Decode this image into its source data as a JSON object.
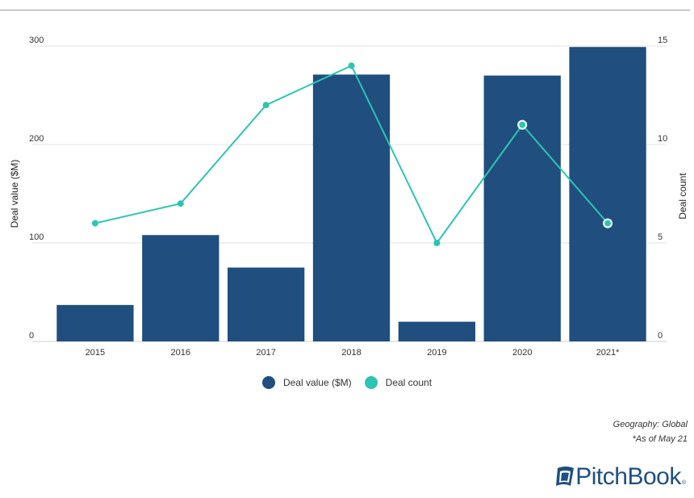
{
  "chart_data": {
    "type": "bar",
    "categories": [
      "2015",
      "2016",
      "2017",
      "2018",
      "2019",
      "2020",
      "2021*"
    ],
    "series": [
      {
        "name": "Deal value ($M)",
        "type": "bar",
        "axis": "left",
        "color": "#1f4e7f",
        "values": [
          37,
          108,
          75,
          271,
          20,
          270,
          299
        ]
      },
      {
        "name": "Deal count",
        "type": "line",
        "axis": "right",
        "color": "#2ec4b3",
        "values": [
          6,
          7,
          12,
          14,
          5,
          11,
          6
        ]
      }
    ],
    "ylabel": "Deal value ($M)",
    "y2label": "Deal count",
    "ylim": [
      0,
      300
    ],
    "y2lim": [
      0,
      15
    ],
    "yticks": [
      "0",
      "100",
      "200",
      "300"
    ],
    "y2ticks": [
      "0",
      "5",
      "10",
      "15"
    ],
    "grid": true,
    "legend": "bottom-center"
  },
  "legend": {
    "value_label": "Deal value ($M)",
    "count_label": "Deal count",
    "value_color": "#1f4e7f",
    "count_color": "#2ec4b3"
  },
  "footnotes": {
    "geography": "Geography: Global",
    "as_of": "*As of May 21"
  },
  "logo": {
    "text": "PitchBook",
    "reg": "®"
  }
}
